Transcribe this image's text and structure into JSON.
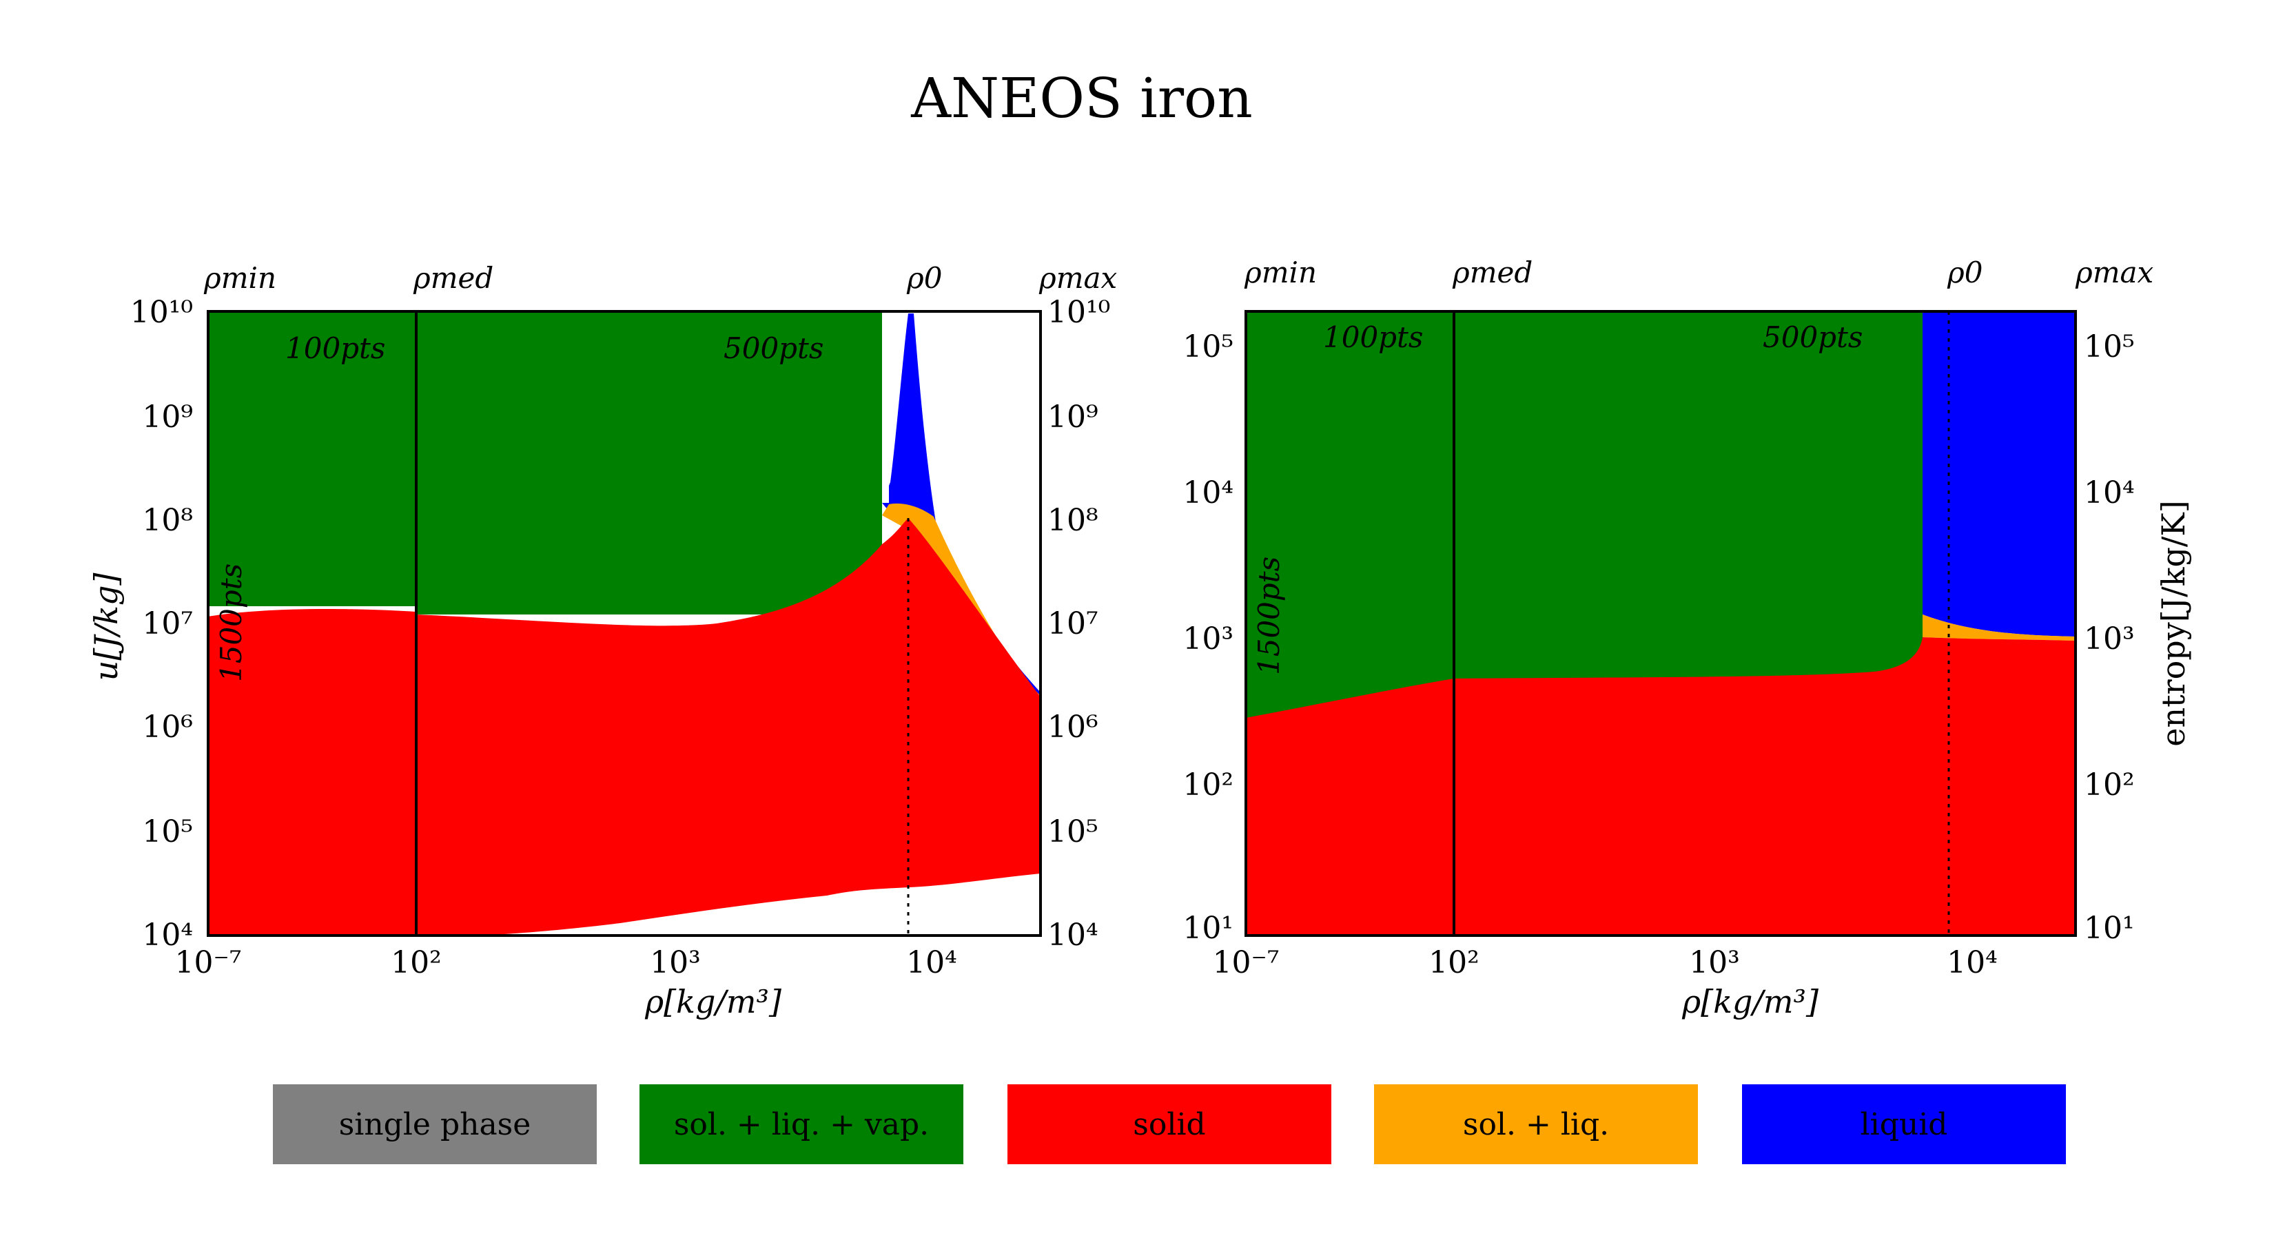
{
  "title": "ANEOS iron",
  "colors": {
    "single_phase": "#808080",
    "sol_liq_vap": "#008000",
    "solid": "#ff0000",
    "sol_liq": "#ffa500",
    "liquid": "#0000ff"
  },
  "legend": [
    {
      "label": "single phase",
      "color": "#808080"
    },
    {
      "label": "sol. + liq. + vap.",
      "color": "#008000"
    },
    {
      "label": "solid",
      "color": "#ff0000"
    },
    {
      "label": "sol. + liq.",
      "color": "#ffa500"
    },
    {
      "label": "liquid",
      "color": "#0000ff"
    }
  ],
  "chart_data": [
    {
      "type": "area",
      "xlabel": "ρ[kg/m³]",
      "ylabel": "u[J/kg]",
      "y_scale": "log",
      "x_scale": "log",
      "ylim": [
        10000,
        10000000000
      ],
      "x_ticks": [
        "10⁻⁷",
        "10²",
        "10³",
        "10⁴"
      ],
      "y_ticks": [
        "10⁴",
        "10⁵",
        "10⁶",
        "10⁷",
        "10⁸",
        "10⁹",
        "10¹⁰"
      ],
      "y_ticks_right": [
        "10⁴",
        "10⁵",
        "10⁶",
        "10⁷",
        "10⁸",
        "10⁹",
        "10¹⁰"
      ],
      "top_labels": {
        "rho_min": "ρmin",
        "rho_med": "ρmed",
        "rho_0": "ρ0",
        "rho_max": "ρmax"
      },
      "annotations": {
        "pts_low": "100pts",
        "pts_high": "500pts",
        "pts_vertical": "1500pts"
      },
      "grid": false
    },
    {
      "type": "area",
      "xlabel": "ρ[kg/m³]",
      "ylabel_right": "entropy[J/kg/K]",
      "y_scale": "log",
      "x_scale": "log",
      "ylim": [
        8,
        180000
      ],
      "x_ticks": [
        "10⁻⁷",
        "10²",
        "10³",
        "10⁴"
      ],
      "y_ticks": [
        "10¹",
        "10²",
        "10³",
        "10⁴",
        "10⁵"
      ],
      "y_ticks_right": [
        "10¹",
        "10²",
        "10³",
        "10⁴",
        "10⁵"
      ],
      "top_labels": {
        "rho_min": "ρmin",
        "rho_med": "ρmed",
        "rho_0": "ρ0",
        "rho_max": "ρmax"
      },
      "annotations": {
        "pts_low": "100pts",
        "pts_high": "500pts",
        "pts_vertical": "1500pts"
      },
      "grid": false
    }
  ]
}
